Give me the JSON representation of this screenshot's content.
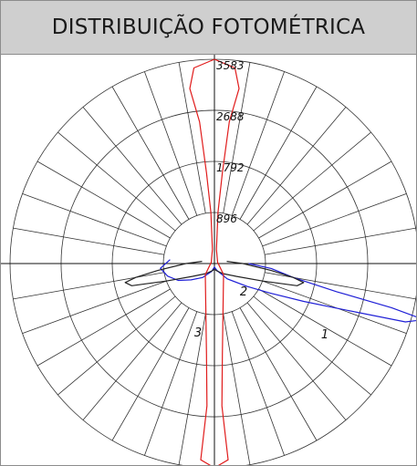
{
  "header": {
    "title": "DISTRIBUIÇÃO FOTOMÉTRICA"
  },
  "chart_data": {
    "type": "polar",
    "title": "DISTRIBUIÇÃO FOTOMÉTRICA",
    "radial_ticks": [
      896,
      1792,
      2688,
      3583
    ],
    "radial_max": 3583,
    "angle_step_deg": 10,
    "colors": {
      "grid": "#333333",
      "curve1": "#1f1fd6",
      "curve2": "#222222",
      "curve3": "#e01b1b"
    },
    "series": [
      {
        "name": "1",
        "color": "#1f1fd6",
        "points": [
          [
            90,
            600
          ],
          [
            95,
            1000
          ],
          [
            100,
            1400
          ],
          [
            103,
            2200
          ],
          [
            104,
            3200
          ],
          [
            105,
            3800
          ],
          [
            107,
            3500
          ],
          [
            110,
            2300
          ],
          [
            113,
            1700
          ],
          [
            118,
            1100
          ],
          [
            125,
            700
          ],
          [
            140,
            350
          ],
          [
            160,
            130
          ],
          [
            180,
            60
          ],
          [
            200,
            150
          ],
          [
            220,
            320
          ],
          [
            235,
            500
          ],
          [
            245,
            700
          ],
          [
            255,
            850
          ],
          [
            265,
            950
          ],
          [
            275,
            780
          ]
        ]
      },
      {
        "name": "2",
        "color": "#222222",
        "points": [
          [
            80,
            220
          ],
          [
            90,
            500
          ],
          [
            97,
            1000
          ],
          [
            100,
            1400
          ],
          [
            102,
            1600
          ],
          [
            105,
            1500
          ],
          [
            110,
            900
          ],
          [
            120,
            450
          ],
          [
            140,
            230
          ],
          [
            160,
            140
          ],
          [
            180,
            100
          ],
          [
            200,
            140
          ],
          [
            220,
            230
          ],
          [
            240,
            450
          ],
          [
            250,
            900
          ],
          [
            255,
            1500
          ],
          [
            258,
            1600
          ],
          [
            260,
            1400
          ],
          [
            263,
            1000
          ],
          [
            270,
            500
          ],
          [
            280,
            220
          ]
        ]
      },
      {
        "name": "3",
        "color": "#e01b1b",
        "points": [
          [
            0,
            3583
          ],
          [
            6,
            3450
          ],
          [
            8,
            3100
          ],
          [
            6,
            2500
          ],
          [
            5,
            1600
          ],
          [
            4,
            900
          ],
          [
            8,
            250
          ],
          [
            70,
            60
          ],
          [
            140,
            250
          ],
          [
            175,
            1600
          ],
          [
            177,
            2500
          ],
          [
            176,
            3450
          ],
          [
            180,
            3583
          ],
          [
            184,
            3450
          ],
          [
            183,
            2500
          ],
          [
            185,
            1600
          ],
          [
            220,
            250
          ],
          [
            290,
            60
          ],
          [
            352,
            250
          ],
          [
            356,
            900
          ],
          [
            355,
            1600
          ],
          [
            354,
            2500
          ],
          [
            352,
            3100
          ],
          [
            354,
            3450
          ],
          [
            360,
            3583
          ]
        ]
      }
    ]
  }
}
